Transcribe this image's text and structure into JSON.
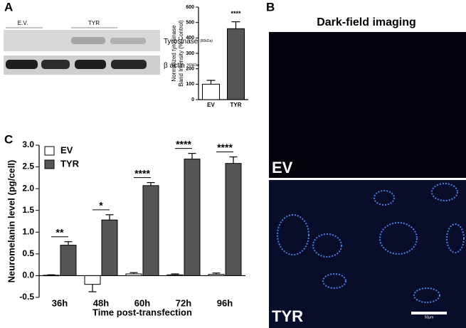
{
  "panel_labels": [
    "A",
    "B",
    "C"
  ],
  "blot": {
    "lanes": [
      "E.V.",
      "TYR"
    ],
    "bands": [
      {
        "name": "Tyrosinase",
        "size": "(80kDa)"
      },
      {
        "name": "β actin",
        "size": "(43kDa)"
      }
    ]
  },
  "imaging": {
    "title": "Dark-field imaging",
    "panels": [
      "EV",
      "TYR"
    ],
    "scale_bar": "50µm"
  },
  "chart_data": [
    {
      "type": "bar",
      "ylabel": [
        "Normalized tyrosinase",
        "Band Intensity (% Control)"
      ],
      "categories": [
        "EV",
        "TYR"
      ],
      "series": [
        {
          "colors": [
            "#ffffff",
            "#555555"
          ],
          "values": [
            100,
            460
          ],
          "errors": [
            25,
            45
          ]
        }
      ],
      "significance": [
        null,
        "****"
      ],
      "ylim": [
        0,
        600
      ],
      "yticks": [
        0,
        100,
        200,
        300,
        400,
        500,
        600
      ]
    },
    {
      "type": "bar",
      "ylabel": "Neuromelanin level (pg/cell)",
      "xlabel": "Time post-transfection",
      "categories": [
        "36h",
        "48h",
        "60h",
        "72h",
        "96h"
      ],
      "series": [
        {
          "name": "EV",
          "color": "#ffffff",
          "values": [
            0.01,
            -0.2,
            0.04,
            0.02,
            0.03
          ],
          "errors": [
            0.01,
            0.17,
            0.03,
            0.02,
            0.03
          ]
        },
        {
          "name": "TYR",
          "color": "#555555",
          "values": [
            0.7,
            1.28,
            2.07,
            2.68,
            2.58
          ],
          "errors": [
            0.08,
            0.12,
            0.07,
            0.13,
            0.15
          ]
        }
      ],
      "significance": [
        "**",
        "*",
        "****",
        "****",
        "****"
      ],
      "legend": "upper left",
      "ylim": [
        -0.5,
        3.0
      ],
      "yticks": [
        {
          "value": -0.5,
          "label": "-0.5"
        },
        {
          "value": 0,
          "label": "0.0"
        },
        {
          "value": 0.5,
          "label": "0.5"
        },
        {
          "value": 1,
          "label": "1.0"
        },
        {
          "value": 1.5,
          "label": "1.5"
        },
        {
          "value": 2,
          "label": "2.0"
        },
        {
          "value": 2.5,
          "label": "2.5"
        },
        {
          "value": 3,
          "label": "3.0"
        }
      ]
    }
  ]
}
